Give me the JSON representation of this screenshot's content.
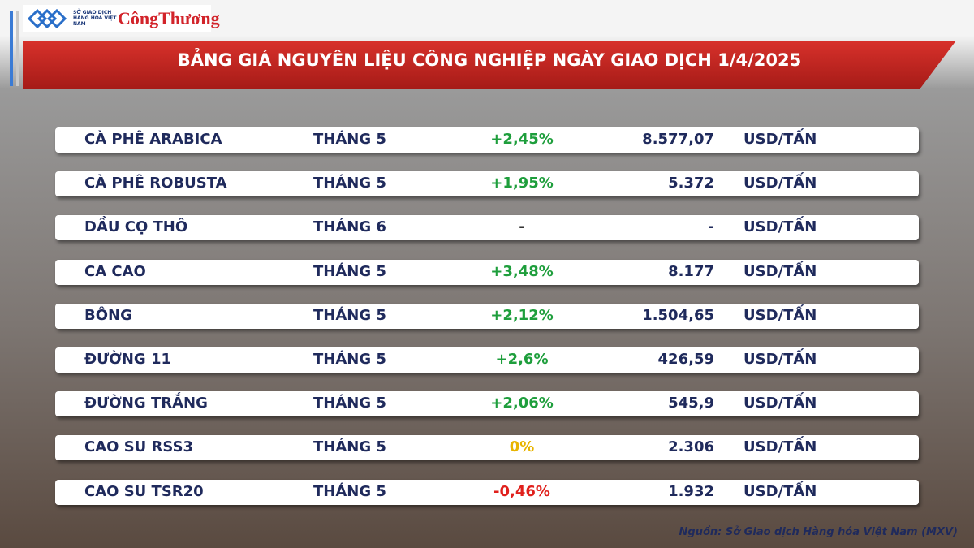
{
  "header": {
    "logo_text": "SỞ GIAO DỊCH HÀNG HÓA VIỆT NAM",
    "brand": "CôngThương",
    "title": "BẢNG GIÁ NGUYÊN LIỆU CÔNG NGHIỆP NGÀY GIAO DỊCH 1/4/2025"
  },
  "table": {
    "rows": [
      {
        "name": "CÀ PHÊ ARABICA",
        "month": "THÁNG 5",
        "change": "+2,45%",
        "price": "8.577,07",
        "unit": "USD/TẤN",
        "color": "#1e9e3c"
      },
      {
        "name": "CÀ PHÊ ROBUSTA",
        "month": "THÁNG 5",
        "change": "+1,95%",
        "price": "5.372",
        "unit": "USD/TẤN",
        "color": "#1e9e3c"
      },
      {
        "name": "DẦU CỌ THÔ",
        "month": "THÁNG 6",
        "change": "-",
        "price": "-",
        "unit": "USD/TẤN",
        "color": "#333333"
      },
      {
        "name": "CA CAO",
        "month": "THÁNG 5",
        "change": "+3,48%",
        "price": "8.177",
        "unit": "USD/TẤN",
        "color": "#1e9e3c"
      },
      {
        "name": "BÔNG",
        "month": "THÁNG 5",
        "change": "+2,12%",
        "price": "1.504,65",
        "unit": "USD/TẤN",
        "color": "#1e9e3c"
      },
      {
        "name": "ĐƯỜNG 11",
        "month": "THÁNG 5",
        "change": "+2,6%",
        "price": "426,59",
        "unit": "USD/TẤN",
        "color": "#1e9e3c"
      },
      {
        "name": "ĐƯỜNG TRẮNG",
        "month": "THÁNG 5",
        "change": "+2,06%",
        "price": "545,9",
        "unit": "USD/TẤN",
        "color": "#1e9e3c"
      },
      {
        "name": "CAO SU RSS3",
        "month": "THÁNG 5",
        "change": "0%",
        "price": "2.306",
        "unit": "USD/TẤN",
        "color": "#e8b400"
      },
      {
        "name": "CAO SU TSR20",
        "month": "THÁNG 5",
        "change": "-0,46%",
        "price": "1.932",
        "unit": "USD/TẤN",
        "color": "#e0201c"
      }
    ]
  },
  "footer": {
    "source": "Nguồn: Sở Giao dịch Hàng hóa Việt Nam (MXV)"
  }
}
